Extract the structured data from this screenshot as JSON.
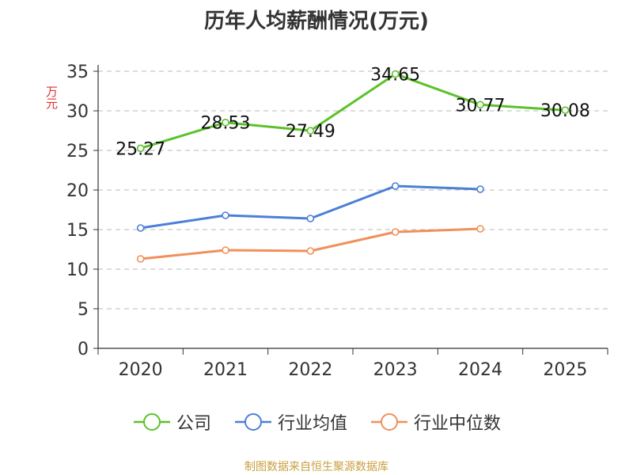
{
  "chart_data": {
    "type": "line",
    "title": "历年人均薪酬情况(万元)",
    "ylabel": "万元",
    "xlabel": "",
    "categories": [
      "2020",
      "2021",
      "2022",
      "2023",
      "2024",
      "2025"
    ],
    "ylim": [
      0,
      35
    ],
    "yticks": [
      "0",
      "5",
      "10",
      "15",
      "20",
      "25",
      "30",
      "35"
    ],
    "grid": "horizontal-dashed",
    "legend_position": "bottom",
    "series": [
      {
        "name": "公司",
        "color": "#5bc229",
        "values": [
          25.27,
          28.53,
          27.49,
          34.65,
          30.77,
          30.08
        ],
        "labels": [
          "25.27",
          "28.53",
          "27.49",
          "34.65",
          "30.77",
          "30.08"
        ]
      },
      {
        "name": "行业均值",
        "color": "#4b7fd6",
        "values": [
          15.2,
          16.8,
          16.4,
          20.5,
          20.1,
          null
        ],
        "labels": []
      },
      {
        "name": "行业中位数",
        "color": "#f0905a",
        "values": [
          11.3,
          12.4,
          12.3,
          14.7,
          15.1,
          null
        ],
        "labels": []
      }
    ]
  },
  "source_note": "制图数据来自恒生聚源数据库"
}
